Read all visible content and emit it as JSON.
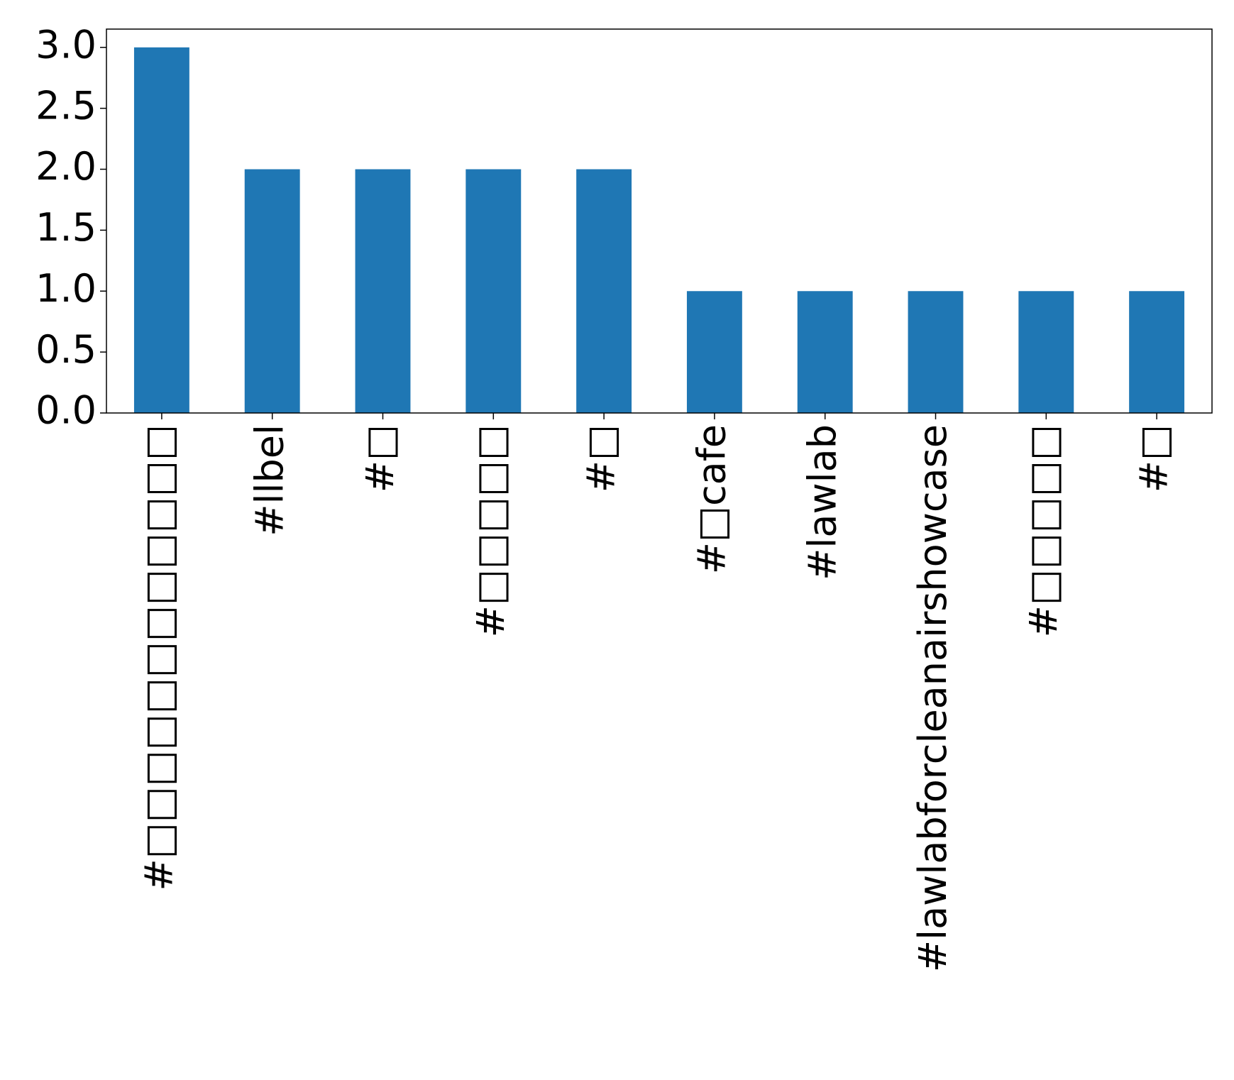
{
  "chart_data": {
    "type": "bar",
    "categories": [
      "#□□□□□□□□□□□□",
      "#llbel",
      "#□",
      "#□□□□□",
      "#□",
      "#□cafe",
      "#lawlab",
      "#lawlabforcleanairshowcase",
      "#□□□□□",
      "#□"
    ],
    "values": [
      3,
      2,
      2,
      2,
      2,
      1,
      1,
      1,
      1,
      1
    ],
    "color": "#1f77b4",
    "ylim": [
      0,
      3.15
    ],
    "yticks": [
      {
        "value": 0,
        "label": "0.0"
      },
      {
        "value": 0.5,
        "label": "0.5"
      },
      {
        "value": 1,
        "label": "1.0"
      },
      {
        "value": 1.5,
        "label": "1.5"
      },
      {
        "value": 2,
        "label": "2.0"
      },
      {
        "value": 2.5,
        "label": "2.5"
      },
      {
        "value": 3,
        "label": "3.0"
      }
    ],
    "grid": false
  }
}
